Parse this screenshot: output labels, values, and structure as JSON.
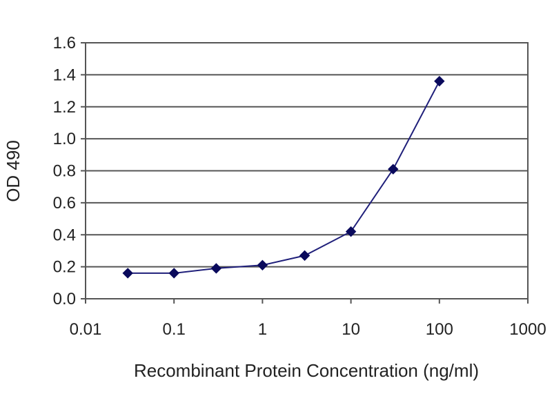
{
  "chart_data": {
    "type": "scatter",
    "x_scale": "log",
    "xlabel": "Recombinant Protein Concentration (ng/ml)",
    "ylabel": "OD 490",
    "xlim": [
      0.01,
      1000
    ],
    "ylim": [
      0,
      1.6
    ],
    "x_ticks": [
      "0.01",
      "0.1",
      "1",
      "10",
      "100",
      "1000"
    ],
    "y_ticks": [
      "0.0",
      "0.2",
      "0.4",
      "0.6",
      "0.8",
      "1.0",
      "1.2",
      "1.4",
      "1.6"
    ],
    "grid": "horizontal",
    "legend": "none",
    "series": [
      {
        "color": "#1f1f7a",
        "marker_color": "#0a0a5c",
        "marker": "diamond",
        "x": [
          0.03,
          0.1,
          0.3,
          1,
          3,
          10,
          30,
          100
        ],
        "y": [
          0.16,
          0.16,
          0.19,
          0.21,
          0.27,
          0.42,
          0.81,
          1.36
        ]
      }
    ]
  }
}
